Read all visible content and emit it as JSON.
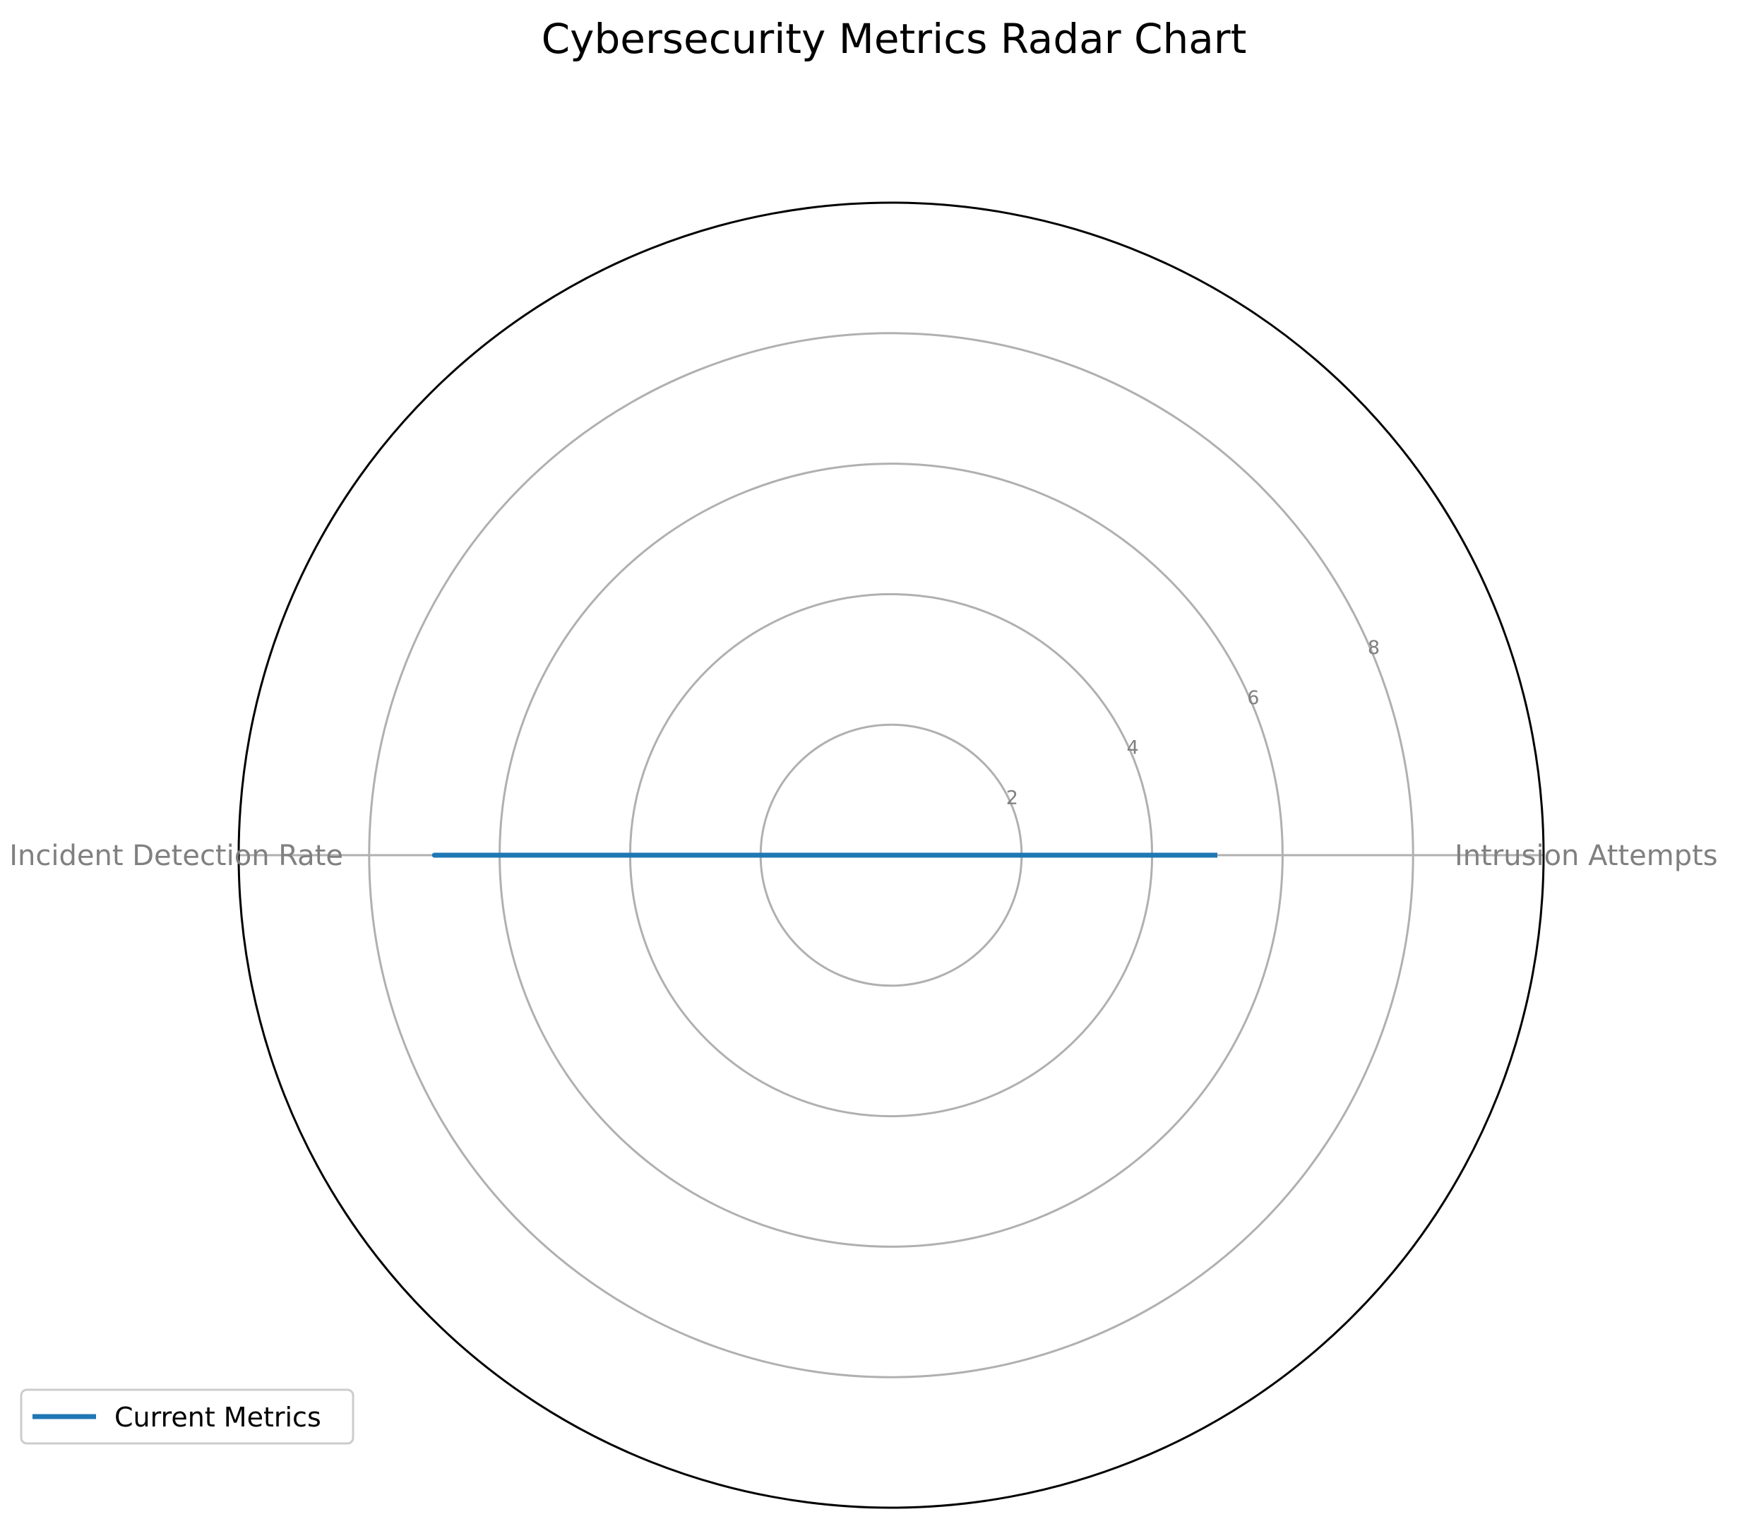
{
  "chart_data": {
    "type": "radar",
    "title": "Cybersecurity Metrics Radar Chart",
    "categories": [
      "Intrusion Attempts",
      "Incident Detection Rate"
    ],
    "series": [
      {
        "name": "Current Metrics",
        "values": [
          5,
          7
        ],
        "color": "#1f77b4"
      }
    ],
    "radial_ticks": [
      2,
      4,
      6,
      8
    ],
    "rlim": [
      0,
      10
    ],
    "grid": true,
    "legend_position": "lower-left",
    "colors": {
      "grid": "#b0b0b0",
      "frame": "#000000",
      "axis_label": "#808080",
      "tick_label": "#808080",
      "title": "#000000"
    }
  }
}
